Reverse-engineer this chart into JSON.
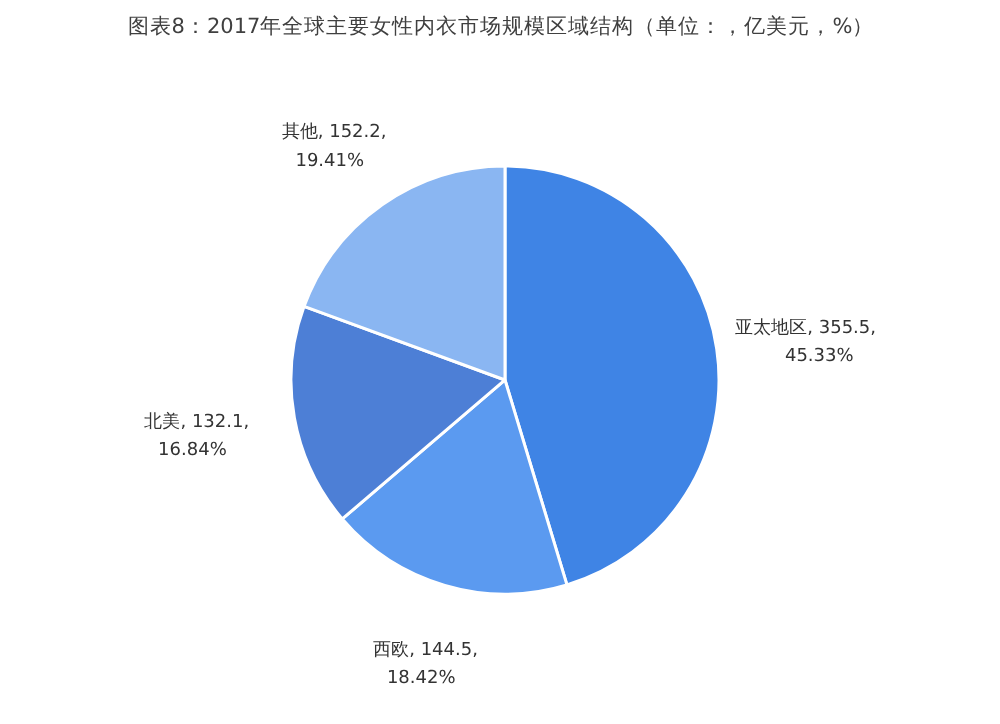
{
  "chart_data": {
    "type": "pie",
    "title": "图表8：2017年全球主要女性内衣市场规模区域结构（单位：，亿美元，%）",
    "categories": [
      "亚太地区",
      "西欧",
      "北美",
      "其他"
    ],
    "values": [
      355.5,
      144.5,
      132.1,
      152.2
    ],
    "colors": [
      "#3f84e5",
      "#5b9af0",
      "#4d7fd6",
      "#8ab6f2"
    ],
    "value_labels": [
      ", 355.5,\n45.33%",
      ", 144.5,\n18.42%",
      ", 132.1,\n16.84%",
      ", 152.2,\n19.41%"
    ],
    "legend": false
  }
}
